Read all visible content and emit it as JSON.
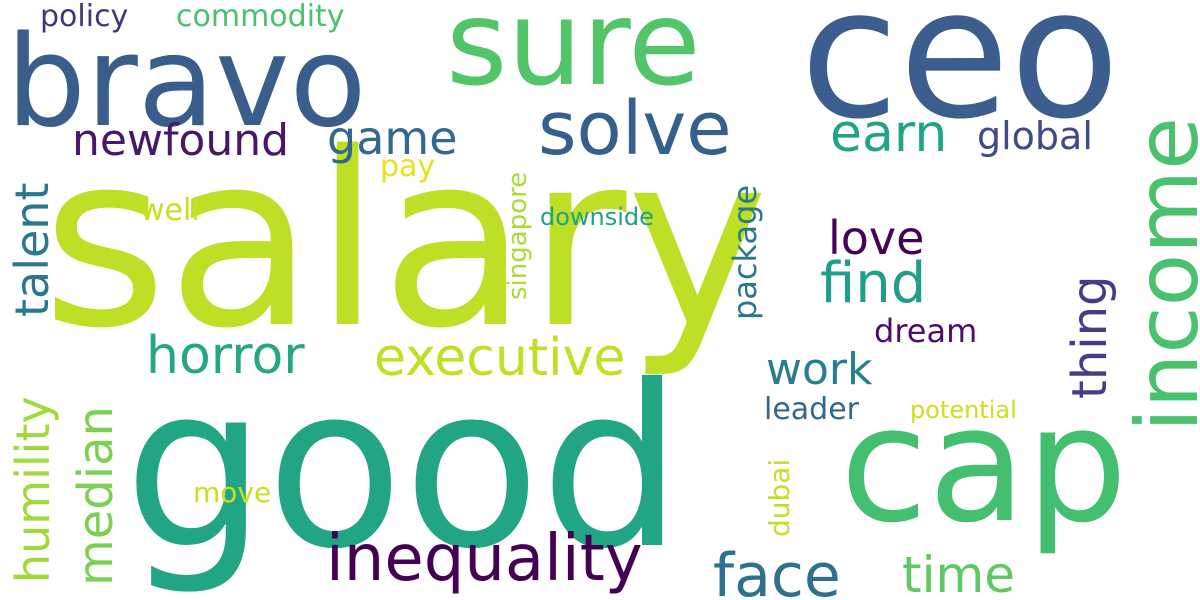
{
  "words": [
    {
      "text": "salary",
      "color": "#bddf26"
    },
    {
      "text": "good",
      "color": "#21a585"
    },
    {
      "text": "ceo",
      "color": "#3b5e8f"
    },
    {
      "text": "cap",
      "color": "#44bf70"
    },
    {
      "text": "bravo",
      "color": "#3a5e8c"
    },
    {
      "text": "sure",
      "color": "#52c569"
    },
    {
      "text": "income",
      "color": "#4ac16d"
    },
    {
      "text": "solve",
      "color": "#355f8d"
    },
    {
      "text": "inequality",
      "color": "#440154"
    },
    {
      "text": "executive",
      "color": "#c2df23"
    },
    {
      "text": "horror",
      "color": "#26a784"
    },
    {
      "text": "face",
      "color": "#2c728e"
    },
    {
      "text": "time",
      "color": "#5ec962"
    },
    {
      "text": "median",
      "color": "#7ad151"
    },
    {
      "text": "humility",
      "color": "#a0da39"
    },
    {
      "text": "talent",
      "color": "#2a788e"
    },
    {
      "text": "newfound",
      "color": "#481769"
    },
    {
      "text": "game",
      "color": "#31688e"
    },
    {
      "text": "earn",
      "color": "#20a486"
    },
    {
      "text": "find",
      "color": "#1f9e89"
    },
    {
      "text": "love",
      "color": "#440256"
    },
    {
      "text": "thing",
      "color": "#433e85"
    },
    {
      "text": "work",
      "color": "#277f8e"
    },
    {
      "text": "global",
      "color": "#3e4a89"
    },
    {
      "text": "dream",
      "color": "#4b0c6b"
    },
    {
      "text": "leader",
      "color": "#31688e"
    },
    {
      "text": "potential",
      "color": "#cae11f"
    },
    {
      "text": "package",
      "color": "#2a788e"
    },
    {
      "text": "singapore",
      "color": "#aadc32"
    },
    {
      "text": "downside",
      "color": "#1fa187"
    },
    {
      "text": "pay",
      "color": "#e5e419"
    },
    {
      "text": "well",
      "color": "#c8e020"
    },
    {
      "text": "move",
      "color": "#c8e020"
    },
    {
      "text": "dubai",
      "color": "#c2df23"
    },
    {
      "text": "policy",
      "color": "#46337e"
    },
    {
      "text": "commodity",
      "color": "#4ac16d"
    }
  ]
}
